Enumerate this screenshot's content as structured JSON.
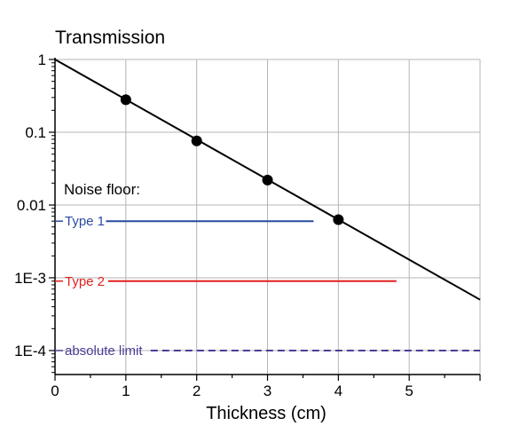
{
  "chart_data": {
    "type": "line",
    "title": "Transmission",
    "xlabel": "Thickness (cm)",
    "ylabel": "",
    "x_scale": "linear",
    "y_scale": "log",
    "xlim": [
      0,
      6
    ],
    "ylim": [
      5e-05,
      1
    ],
    "grid": true,
    "x_ticks": [
      0,
      1,
      2,
      3,
      4,
      5
    ],
    "y_ticks": [
      {
        "value": 1,
        "label": "1"
      },
      {
        "value": 0.1,
        "label": "0.1"
      },
      {
        "value": 0.01,
        "label": "0.01"
      },
      {
        "value": 0.001,
        "label": "1E-3"
      },
      {
        "value": 0.0001,
        "label": "1E-4"
      }
    ],
    "series": [
      {
        "color": "#000000",
        "line": {
          "x": [
            0,
            6
          ],
          "y": [
            1,
            0.0005
          ]
        },
        "points": {
          "x": [
            1,
            2,
            3,
            4
          ],
          "y": [
            0.28,
            0.076,
            0.022,
            0.0063
          ]
        }
      }
    ],
    "noise_floor": {
      "title": "Noise floor:",
      "levels": [
        {
          "label": "Type 1",
          "y": 0.006,
          "x_end": 3.65,
          "color": "#2b4aa0",
          "style": "solid"
        },
        {
          "label": "Type 2",
          "y": 0.0009,
          "x_end": 4.82,
          "color": "#e0201e",
          "style": "solid"
        },
        {
          "label": "absolute limit",
          "y": 0.0001,
          "x_end": 6,
          "color": "#4b3c96",
          "style": "dashed"
        }
      ]
    }
  }
}
